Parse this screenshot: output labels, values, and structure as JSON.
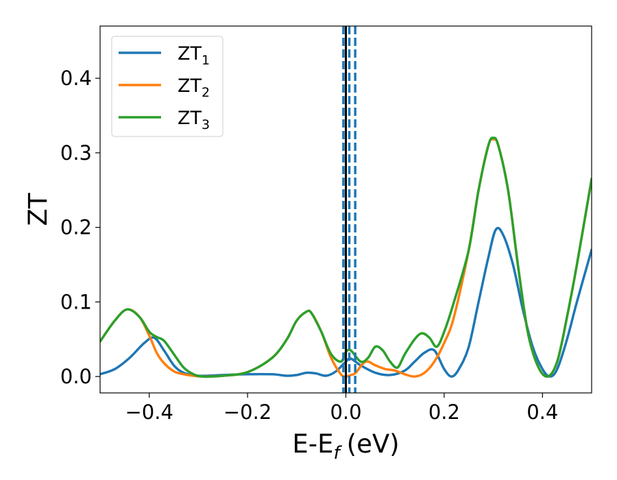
{
  "chart_data": {
    "type": "line",
    "title": "",
    "xlabel": "E-E",
    "xlabel_sub": "f",
    "xlabel_unit": "(eV)",
    "ylabel": "ZT",
    "xlim": [
      -0.5,
      0.5
    ],
    "ylim": [
      -0.022,
      0.47
    ],
    "xticks": [
      -0.4,
      -0.2,
      0.0,
      0.2,
      0.4
    ],
    "xtick_labels": [
      "−0.4",
      "−0.2",
      "0.0",
      "0.2",
      "0.4"
    ],
    "yticks": [
      0.0,
      0.1,
      0.2,
      0.3,
      0.4
    ],
    "ytick_labels": [
      "0.0",
      "0.1",
      "0.2",
      "0.3",
      "0.4"
    ],
    "grid": false,
    "legend_position": "top-left",
    "series": [
      {
        "name": "ZT",
        "name_sub": "1",
        "color": "#1f77b4",
        "x": [
          -0.5,
          -0.47,
          -0.44,
          -0.41,
          -0.39,
          -0.37,
          -0.35,
          -0.33,
          -0.3,
          -0.25,
          -0.2,
          -0.15,
          -0.12,
          -0.1,
          -0.08,
          -0.06,
          -0.04,
          -0.02,
          0.0,
          0.01,
          0.03,
          0.06,
          0.09,
          0.12,
          0.14,
          0.16,
          0.18,
          0.2,
          0.215,
          0.23,
          0.25,
          0.27,
          0.29,
          0.305,
          0.32,
          0.34,
          0.36,
          0.38,
          0.4,
          0.415,
          0.43,
          0.45,
          0.47,
          0.5
        ],
        "y": [
          0.003,
          0.01,
          0.025,
          0.045,
          0.052,
          0.035,
          0.015,
          0.005,
          0.001,
          0.002,
          0.003,
          0.003,
          0.001,
          0.002,
          0.005,
          0.004,
          0.001,
          0.007,
          0.02,
          0.024,
          0.015,
          0.005,
          0.002,
          0.008,
          0.02,
          0.032,
          0.035,
          0.01,
          0.0,
          0.01,
          0.04,
          0.1,
          0.16,
          0.197,
          0.19,
          0.15,
          0.09,
          0.04,
          0.01,
          0.0,
          0.01,
          0.05,
          0.1,
          0.17
        ]
      },
      {
        "name": "ZT",
        "name_sub": "2",
        "color": "#ff7f0e",
        "x": [
          -0.5,
          -0.47,
          -0.445,
          -0.42,
          -0.4,
          -0.385,
          -0.37,
          -0.35,
          -0.33,
          -0.31,
          -0.29,
          -0.25,
          -0.2,
          -0.15,
          -0.12,
          -0.1,
          -0.08,
          -0.07,
          -0.05,
          -0.03,
          -0.01,
          0.0,
          0.01,
          0.02,
          0.04,
          0.06,
          0.08,
          0.1,
          0.12,
          0.14,
          0.16,
          0.18,
          0.2,
          0.22,
          0.25,
          0.27,
          0.29,
          0.3,
          0.31,
          0.33,
          0.35,
          0.37,
          0.39,
          0.41,
          0.43,
          0.45,
          0.47,
          0.5
        ],
        "y": [
          0.047,
          0.075,
          0.09,
          0.08,
          0.055,
          0.032,
          0.018,
          0.007,
          0.003,
          0.001,
          0.0,
          0.001,
          0.006,
          0.025,
          0.05,
          0.075,
          0.087,
          0.085,
          0.06,
          0.025,
          0.003,
          0.0,
          0.002,
          0.005,
          0.02,
          0.015,
          0.01,
          0.008,
          0.003,
          0.0,
          0.005,
          0.02,
          0.045,
          0.08,
          0.17,
          0.25,
          0.31,
          0.318,
          0.31,
          0.25,
          0.15,
          0.06,
          0.015,
          0.0,
          0.02,
          0.08,
          0.15,
          0.265
        ]
      },
      {
        "name": "ZT",
        "name_sub": "3",
        "color": "#2ca02c",
        "x": [
          -0.5,
          -0.47,
          -0.445,
          -0.42,
          -0.4,
          -0.385,
          -0.37,
          -0.35,
          -0.33,
          -0.31,
          -0.29,
          -0.25,
          -0.2,
          -0.15,
          -0.12,
          -0.1,
          -0.08,
          -0.07,
          -0.05,
          -0.03,
          -0.01,
          0.0,
          0.01,
          0.03,
          0.045,
          0.06,
          0.075,
          0.09,
          0.105,
          0.12,
          0.14,
          0.155,
          0.17,
          0.185,
          0.2,
          0.22,
          0.25,
          0.27,
          0.29,
          0.3,
          0.31,
          0.33,
          0.35,
          0.37,
          0.39,
          0.41,
          0.43,
          0.45,
          0.47,
          0.5
        ],
        "y": [
          0.047,
          0.075,
          0.09,
          0.08,
          0.06,
          0.053,
          0.048,
          0.03,
          0.012,
          0.003,
          0.0,
          0.001,
          0.006,
          0.025,
          0.05,
          0.075,
          0.087,
          0.085,
          0.06,
          0.03,
          0.02,
          0.033,
          0.035,
          0.02,
          0.025,
          0.04,
          0.035,
          0.02,
          0.012,
          0.03,
          0.05,
          0.058,
          0.052,
          0.04,
          0.06,
          0.1,
          0.17,
          0.25,
          0.31,
          0.32,
          0.31,
          0.25,
          0.15,
          0.06,
          0.015,
          0.0,
          0.02,
          0.08,
          0.15,
          0.265
        ]
      }
    ],
    "vertical_lines": [
      {
        "x": -0.005,
        "color": "#1f77b4",
        "style": "dashed"
      },
      {
        "x": 0.007,
        "color": "#1f77b4",
        "style": "dashed"
      },
      {
        "x": 0.019,
        "color": "#1f77b4",
        "style": "dashed"
      },
      {
        "x": 0.0,
        "color": "#000000",
        "style": "solid"
      }
    ]
  }
}
